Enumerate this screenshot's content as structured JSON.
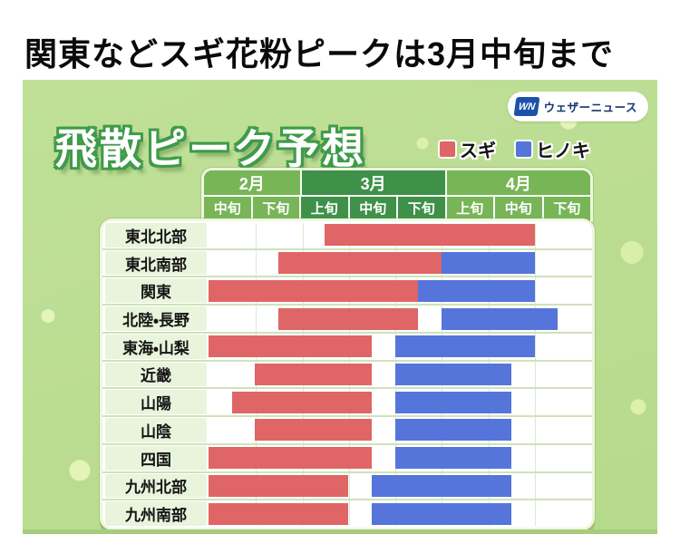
{
  "page": {
    "title": "関東などスギ花粉ピークは3月中旬まで"
  },
  "card": {
    "heading": "飛散ピーク予想",
    "logo": {
      "icon": "WN",
      "text": "ウェザーニュース"
    }
  },
  "colors": {
    "sugi": "#e06566",
    "hinoki": "#5575db",
    "card_bg": "#b6da8c",
    "card_bg_light": "#c0e098",
    "month_green": "#77b557",
    "month_green_dark": "#3f9149"
  },
  "chart_data": {
    "type": "bar",
    "subtype": "horizontal-timeline-spans",
    "title": "飛散ピーク予想",
    "legend": [
      {
        "name": "スギ",
        "color": "#e06566"
      },
      {
        "name": "ヒノキ",
        "color": "#5575db"
      }
    ],
    "column_groups": [
      {
        "month": "2月",
        "periods": [
          "中旬",
          "下旬"
        ]
      },
      {
        "month": "3月",
        "periods": [
          "上旬",
          "中旬",
          "下旬"
        ]
      },
      {
        "month": "4月",
        "periods": [
          "上旬",
          "中旬",
          "下旬"
        ]
      }
    ],
    "x_axis": {
      "unit": "10-day period index (0 = start of 2月中旬, 8 = end of 4月下旬)",
      "range": [
        0,
        8
      ],
      "period_labels": [
        "2月中旬",
        "2月下旬",
        "3月上旬",
        "3月中旬",
        "3月下旬",
        "4月上旬",
        "4月中旬",
        "4月下旬"
      ]
    },
    "rows": [
      {
        "region": "東北北部",
        "sugi": [
          2.5,
          7.0
        ],
        "hinoki": null
      },
      {
        "region": "東北南部",
        "sugi": [
          1.5,
          5.0
        ],
        "hinoki": [
          5.0,
          7.0
        ]
      },
      {
        "region": "関東",
        "sugi": [
          0.0,
          4.5
        ],
        "hinoki": [
          4.5,
          7.0
        ]
      },
      {
        "region": "北陸・長野",
        "sugi": [
          1.5,
          4.5
        ],
        "hinoki": [
          5.0,
          7.5
        ]
      },
      {
        "region": "東海・山梨",
        "sugi": [
          0.0,
          3.5
        ],
        "hinoki": [
          4.0,
          7.0
        ]
      },
      {
        "region": "近畿",
        "sugi": [
          1.0,
          3.5
        ],
        "hinoki": [
          4.0,
          6.5
        ]
      },
      {
        "region": "山陽",
        "sugi": [
          0.5,
          3.5
        ],
        "hinoki": [
          4.0,
          6.5
        ]
      },
      {
        "region": "山陰",
        "sugi": [
          1.0,
          3.5
        ],
        "hinoki": [
          4.0,
          6.5
        ]
      },
      {
        "region": "四国",
        "sugi": [
          0.0,
          3.5
        ],
        "hinoki": [
          4.0,
          6.5
        ]
      },
      {
        "region": "九州北部",
        "sugi": [
          0.0,
          3.0
        ],
        "hinoki": [
          3.5,
          6.5
        ]
      },
      {
        "region": "九州南部",
        "sugi": [
          0.0,
          3.0
        ],
        "hinoki": [
          3.5,
          6.5
        ]
      }
    ]
  }
}
